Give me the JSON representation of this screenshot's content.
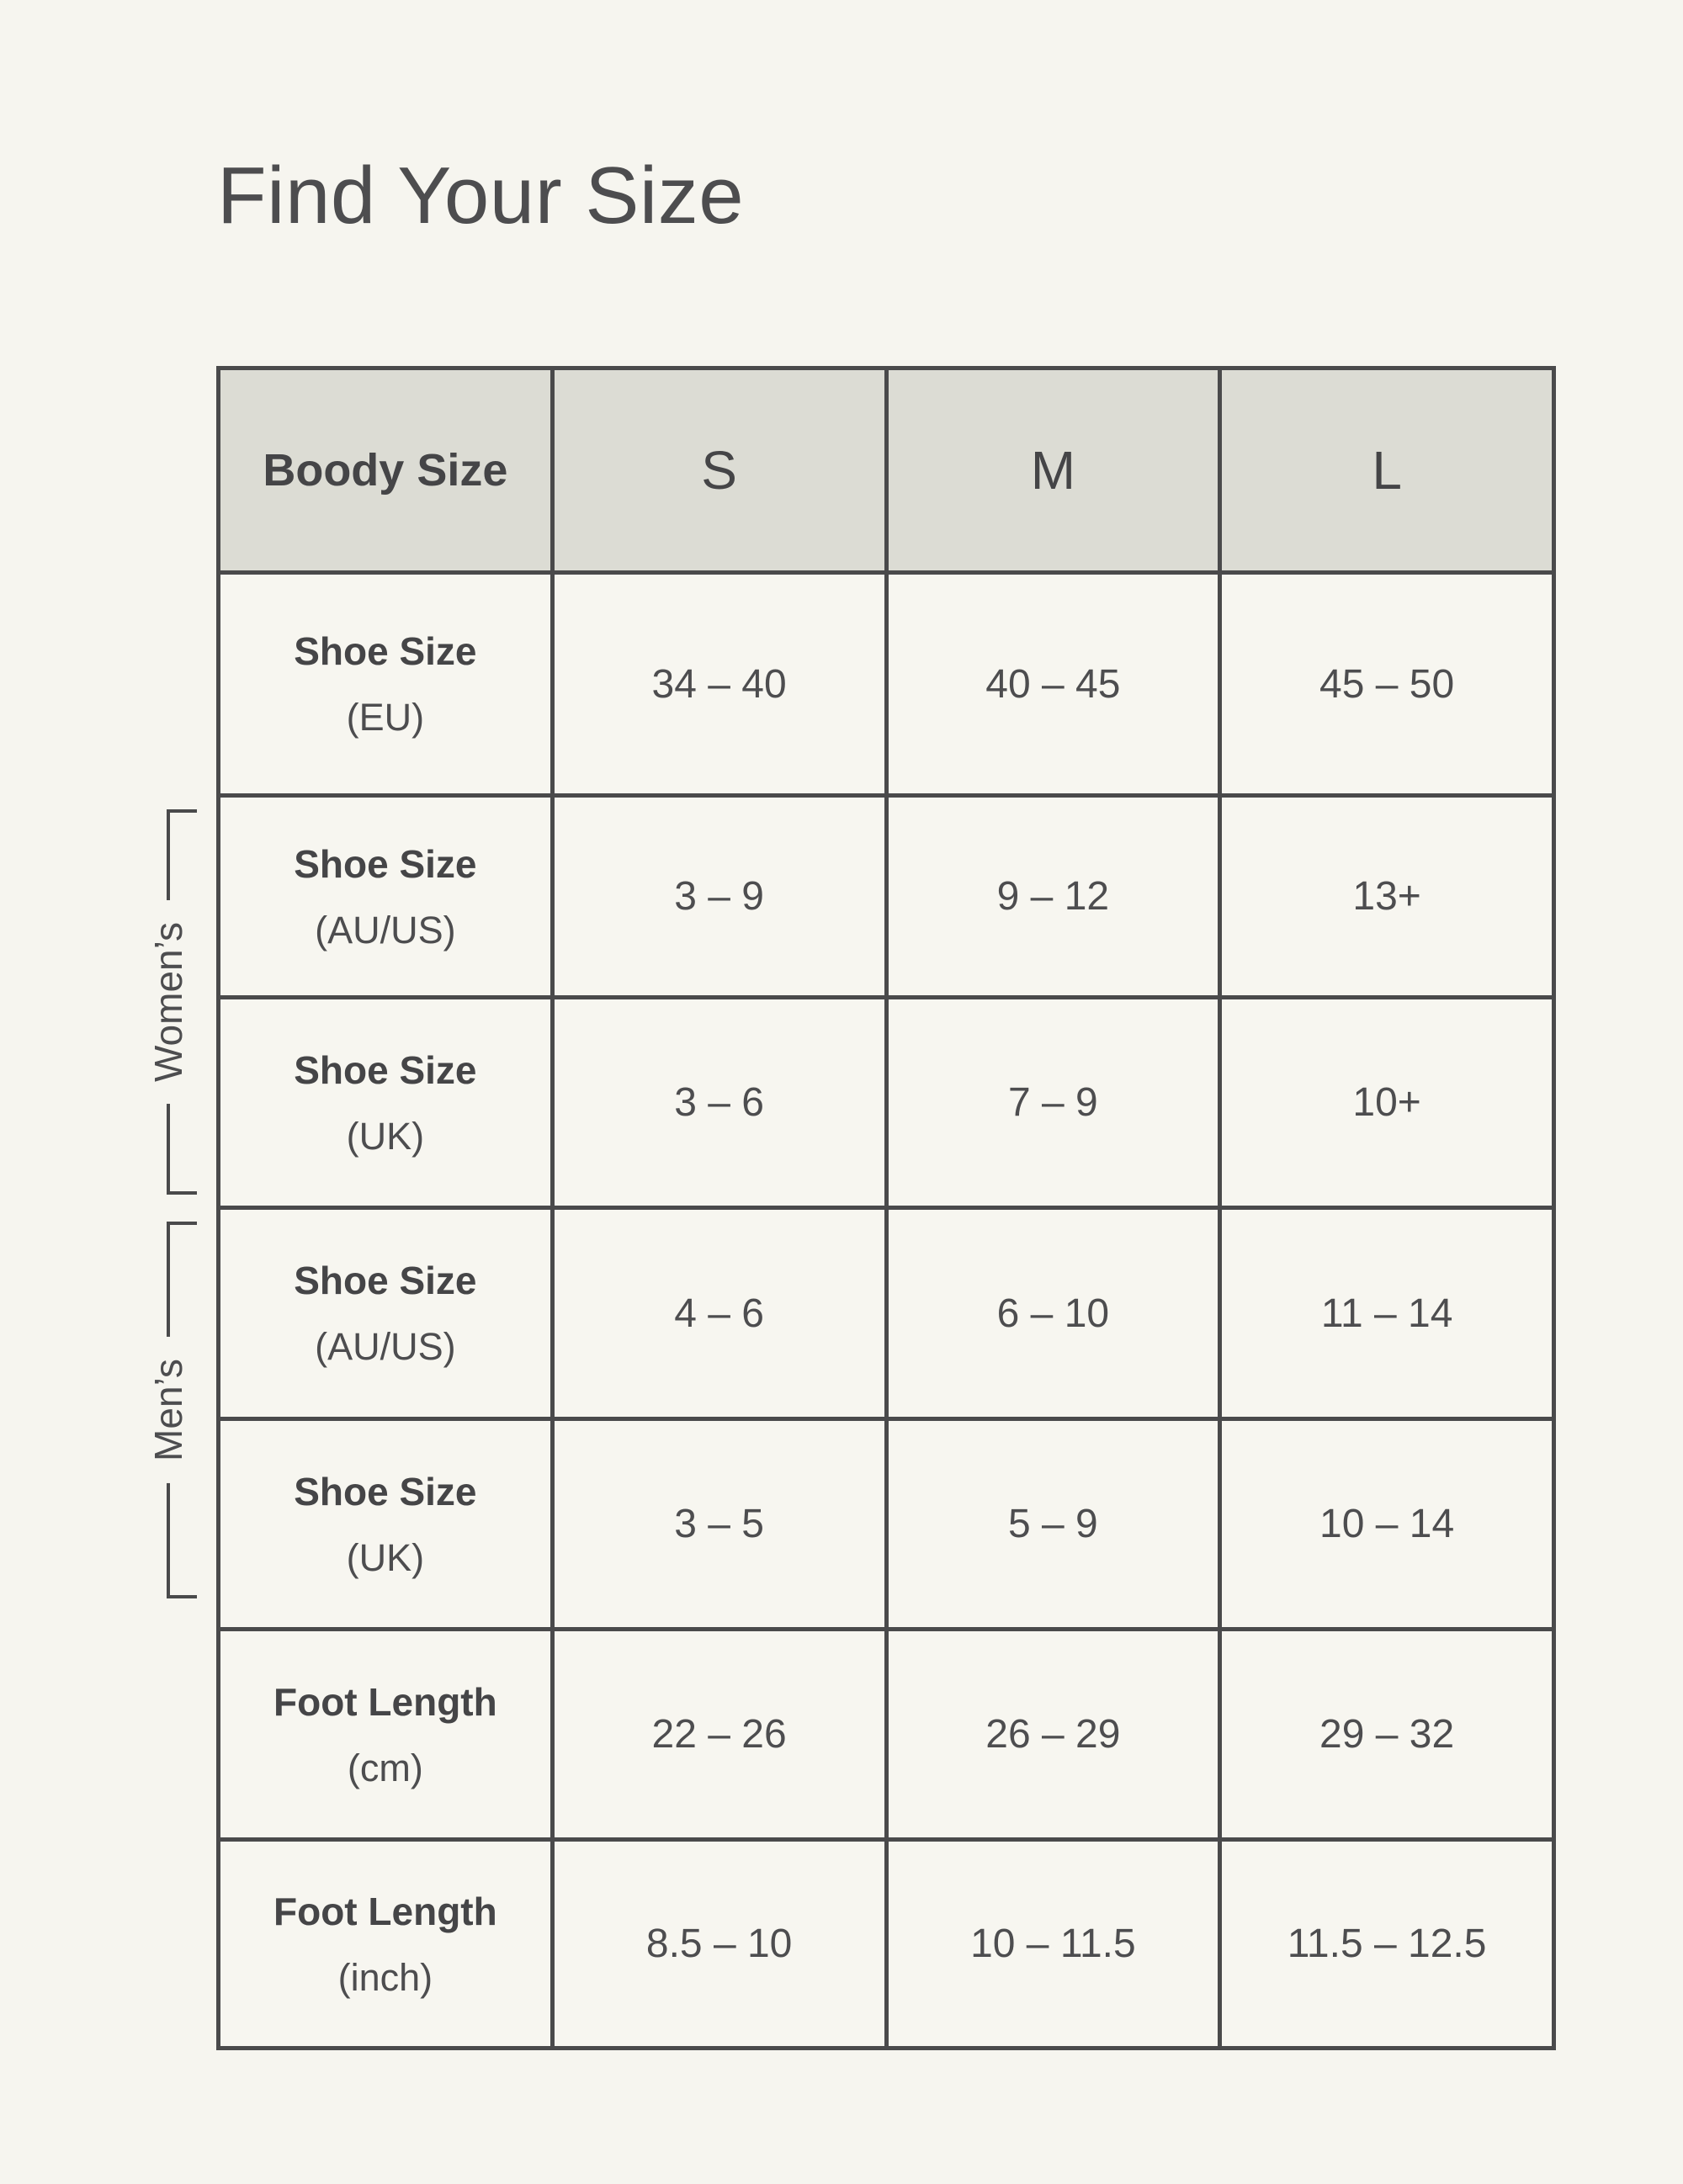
{
  "chart_data": {
    "type": "table",
    "title": "Find Your Size",
    "columns": [
      "Boody Size",
      "S",
      "M",
      "L"
    ],
    "row_groups": [
      {
        "label": "Women’s",
        "row_indexes": [
          1,
          2
        ]
      },
      {
        "label": "Men’s",
        "row_indexes": [
          3,
          4
        ]
      }
    ],
    "rows": [
      {
        "measure": "Shoe Size",
        "unit": "(EU)",
        "values": [
          "34 – 40",
          "40 – 45",
          "45 – 50"
        ]
      },
      {
        "measure": "Shoe Size",
        "unit": "(AU/US)",
        "values": [
          "3 – 9",
          "9 – 12",
          "13+"
        ]
      },
      {
        "measure": "Shoe Size",
        "unit": "(UK)",
        "values": [
          "3 – 6",
          "7 – 9",
          "10+"
        ]
      },
      {
        "measure": "Shoe Size",
        "unit": "(AU/US)",
        "values": [
          "4 – 6",
          "6 – 10",
          "11 – 14"
        ]
      },
      {
        "measure": "Shoe Size",
        "unit": "(UK)",
        "values": [
          "3 – 5",
          "5 – 9",
          "10 – 14"
        ]
      },
      {
        "measure": "Foot Length",
        "unit": "(cm)",
        "values": [
          "22 – 26",
          "26 – 29",
          "29 – 32"
        ]
      },
      {
        "measure": "Foot Length",
        "unit": "(inch)",
        "values": [
          "8.5 – 10",
          "10 – 11.5",
          "11.5 – 12.5"
        ]
      }
    ],
    "layout": {
      "grid": "on",
      "header_row": true
    },
    "colors": {
      "page_background": "#F6F5EF",
      "header_background": "#DCDCD4",
      "cell_background": "#F7F6F0",
      "border": "#4A4A4B",
      "text": "#4D4D4F"
    }
  }
}
